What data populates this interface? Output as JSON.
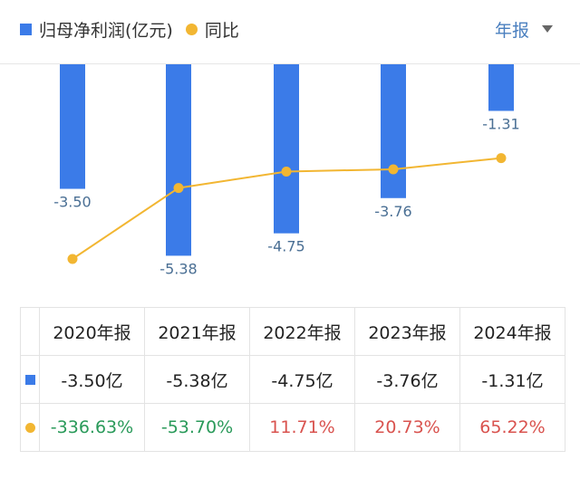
{
  "legend": {
    "bar_label": "归母净利润(亿元)",
    "line_label": "同比"
  },
  "period_select": {
    "value": "年报"
  },
  "colors": {
    "bar": "#3b7be8",
    "line": "#f2b632",
    "neg": "#2a9a5a",
    "pos": "#d9534f",
    "bar_label": "#4a6f94"
  },
  "chart_data": {
    "type": "bar",
    "categories": [
      "2020年报",
      "2021年报",
      "2022年报",
      "2023年报",
      "2024年报"
    ],
    "series": [
      {
        "name": "归母净利润(亿元)",
        "type": "bar",
        "values": [
          -3.5,
          -5.38,
          -4.75,
          -3.76,
          -1.31
        ],
        "labels": [
          "-3.50",
          "-5.38",
          "-4.75",
          "-3.76",
          "-1.31"
        ]
      },
      {
        "name": "同比",
        "type": "line",
        "values": [
          -336.63,
          -53.7,
          11.71,
          20.73,
          65.22
        ]
      }
    ]
  },
  "table": {
    "headers": [
      "2020年报",
      "2021年报",
      "2022年报",
      "2023年报",
      "2024年报"
    ],
    "profit_row": [
      "-3.50亿",
      "-5.38亿",
      "-4.75亿",
      "-3.76亿",
      "-1.31亿"
    ],
    "yoy_row": [
      "-336.63%",
      "-53.70%",
      "11.71%",
      "20.73%",
      "65.22%"
    ]
  }
}
